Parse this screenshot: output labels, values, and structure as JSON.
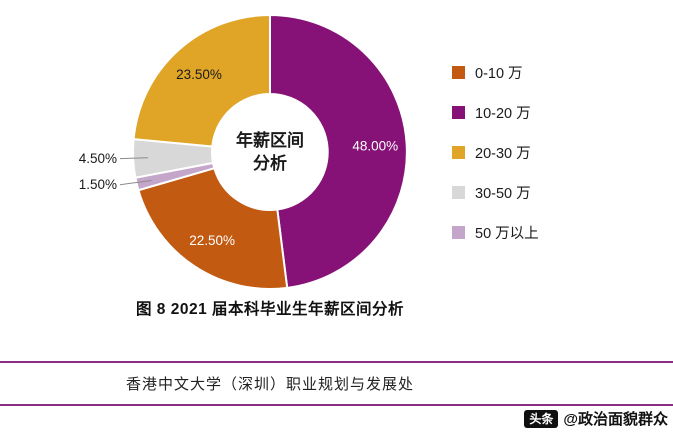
{
  "chart_data": {
    "type": "pie",
    "subtype": "donut",
    "title": "年薪区间分析",
    "center_label_lines": [
      "年薪区间",
      "分析"
    ],
    "categories": [
      "0-10 万",
      "10-20 万",
      "20-30 万",
      "30-50 万",
      "50 万以上"
    ],
    "values": [
      22.5,
      48.0,
      23.5,
      4.5,
      1.5
    ],
    "labels": [
      "22.50%",
      "48.00%",
      "23.50%",
      "4.50%",
      "1.50%"
    ],
    "colors": [
      "#C25A11",
      "#861277",
      "#E0A526",
      "#D8D8D8",
      "#C5A6CB"
    ],
    "label_colors": [
      "#FFFFFF",
      "#FFFFFF",
      "#1A1A1A",
      "#1A1A1A",
      "#1A1A1A"
    ],
    "draw_order": [
      1,
      0,
      4,
      3,
      2
    ],
    "start_angle_deg": 0,
    "direction": "clockwise",
    "legend_position": "right",
    "grid": false
  },
  "caption": "图 8 2021 届本科毕业生年薪区间分析",
  "footer": {
    "text": "香港中文大学（深圳）职业规划与发展处",
    "line_color": "#8B2E83"
  },
  "watermark": {
    "logo_text": "头条",
    "account": "@政治面貌群众"
  }
}
